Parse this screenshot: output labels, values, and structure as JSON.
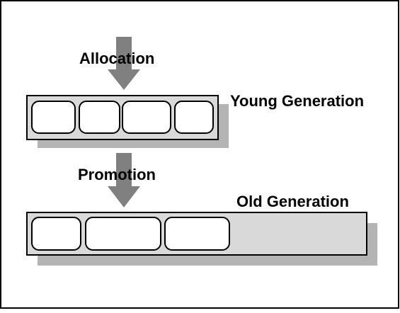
{
  "labels": {
    "allocation": "Allocation",
    "young_generation": "Young Generation",
    "promotion": "Promotion",
    "old_generation": "Old Generation"
  },
  "colors": {
    "frame": "#000000",
    "arrow": "#808080",
    "shadow": "#b4b4b4",
    "bar_fill": "#d9d9d9",
    "cell_fill": "#ffffff",
    "text": "#000000"
  }
}
